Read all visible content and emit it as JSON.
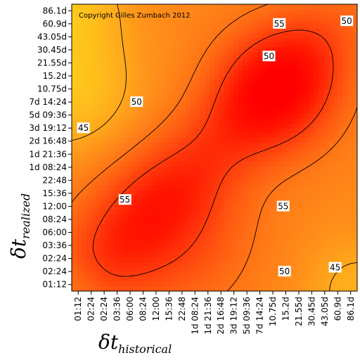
{
  "chart_data": {
    "type": "heatmap",
    "copyright": "Copyright Gilles Zumbach 2012",
    "xlabel": {
      "symbol": "δt",
      "subscript": "historical"
    },
    "ylabel": {
      "symbol": "δt",
      "subscript": "realized"
    },
    "x_ticks": [
      "01:12",
      "02:24",
      "02:24",
      "03:36",
      "06:00",
      "08:24",
      "12:00",
      "15:36",
      "22:48",
      "1d 08:24",
      "1d 21:36",
      "2d 16:48",
      "3d 19:12",
      "5d 09:36",
      "7d 14:24",
      "10.75d",
      "15.2d",
      "21.55d",
      "30.45d",
      "43.05d",
      "60.9d",
      "86.1d"
    ],
    "y_ticks": [
      "86.1d",
      "60.9d",
      "43.05d",
      "30.45d",
      "21.55d",
      "15.2d",
      "10.75d",
      "7d 14:24",
      "5d 09:36",
      "3d 19:12",
      "2d 16:48",
      "1d 21:36",
      "1d 08:24",
      "22:48",
      "15:36",
      "12:00",
      "08:24",
      "06:00",
      "03:36",
      "02:24",
      "02:24",
      "01:12"
    ],
    "contour_levels": [
      45,
      50,
      55
    ],
    "contour_labels": [
      {
        "level": 55,
        "text": "55",
        "x_index": 15.5,
        "y_index": 1.0
      },
      {
        "level": 50,
        "text": "50",
        "x_index": 20.7,
        "y_index": 0.8
      },
      {
        "level": 50,
        "text": "50",
        "x_index": 14.7,
        "y_index": 3.5
      },
      {
        "level": 50,
        "text": "50",
        "x_index": 4.5,
        "y_index": 7.0
      },
      {
        "level": 45,
        "text": "45",
        "x_index": 0.4,
        "y_index": 9.0
      },
      {
        "level": 55,
        "text": "55",
        "x_index": 3.6,
        "y_index": 14.5
      },
      {
        "level": 55,
        "text": "55",
        "x_index": 15.8,
        "y_index": 15.0
      },
      {
        "level": 50,
        "text": "50",
        "x_index": 15.9,
        "y_index": 20.0
      },
      {
        "level": 45,
        "text": "45",
        "x_index": 19.8,
        "y_index": 19.7
      }
    ],
    "colormap": [
      "#FFFF22",
      "#FFC41C",
      "#FFA91C",
      "#FF8519",
      "#FF6012",
      "#FF3A0C",
      "#FF1600",
      "#FF0000"
    ],
    "value_range": [
      38,
      62
    ],
    "grid": false,
    "legend": "none"
  }
}
